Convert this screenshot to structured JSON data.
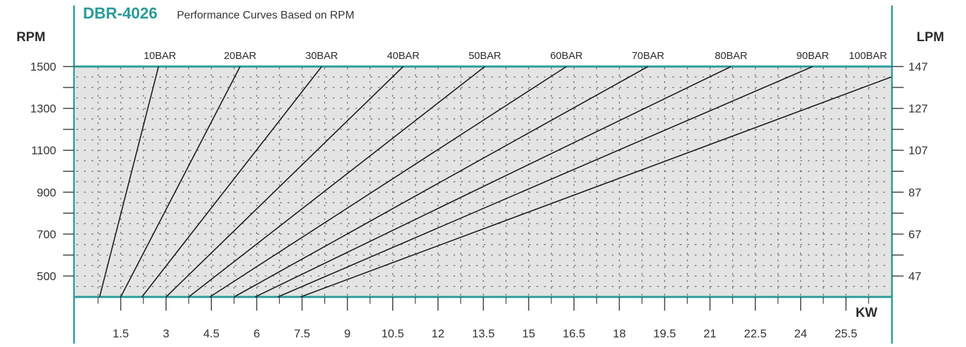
{
  "chart_data": {
    "type": "line",
    "model": "DBR-4026",
    "title": "Performance Curves Based on RPM",
    "ylabel_left": "RPM",
    "ylabel_right": "LPM",
    "xlabel": "KW",
    "ylim": [
      400,
      1500
    ],
    "xlim": [
      0,
      27
    ],
    "grid": true,
    "y_ticks_left": [
      {
        "label": "1500",
        "value": 1500
      },
      {
        "label": "1300",
        "value": 1300
      },
      {
        "label": "1100",
        "value": 1100
      },
      {
        "label": "900",
        "value": 900
      },
      {
        "label": "700",
        "value": 700
      },
      {
        "label": "500",
        "value": 500
      }
    ],
    "y_ticks_right": [
      {
        "label": "147",
        "value": 1500
      },
      {
        "label": "127",
        "value": 1300
      },
      {
        "label": "107",
        "value": 1100
      },
      {
        "label": "87",
        "value": 900
      },
      {
        "label": "67",
        "value": 700
      },
      {
        "label": "47",
        "value": 500
      }
    ],
    "x_ticks": [
      {
        "label": "1.5",
        "value": 1.5
      },
      {
        "label": "3",
        "value": 3
      },
      {
        "label": "4.5",
        "value": 4.5
      },
      {
        "label": "6",
        "value": 6
      },
      {
        "label": "7.5",
        "value": 7.5
      },
      {
        "label": "9",
        "value": 9
      },
      {
        "label": "10.5",
        "value": 10.5
      },
      {
        "label": "12",
        "value": 12
      },
      {
        "label": "13.5",
        "value": 13.5
      },
      {
        "label": "15",
        "value": 15
      },
      {
        "label": "16.5",
        "value": 16.5
      },
      {
        "label": "18",
        "value": 18
      },
      {
        "label": "19.5",
        "value": 19.5
      },
      {
        "label": "21",
        "value": 21
      },
      {
        "label": "22.5",
        "value": 22.5
      },
      {
        "label": "24",
        "value": 24
      },
      {
        "label": "25.5",
        "value": 25.5
      }
    ],
    "series": [
      {
        "name": "10BAR",
        "points": [
          [
            0.8,
            400
          ],
          [
            2.75,
            1500
          ]
        ]
      },
      {
        "name": "20BAR",
        "points": [
          [
            1.5,
            400
          ],
          [
            5.45,
            1500
          ]
        ]
      },
      {
        "name": "30BAR",
        "points": [
          [
            2.2,
            400
          ],
          [
            8.15,
            1500
          ]
        ]
      },
      {
        "name": "40BAR",
        "points": [
          [
            3.0,
            400
          ],
          [
            10.85,
            1500
          ]
        ]
      },
      {
        "name": "50BAR",
        "points": [
          [
            3.75,
            400
          ],
          [
            13.55,
            1500
          ]
        ]
      },
      {
        "name": "60BAR",
        "points": [
          [
            4.45,
            400
          ],
          [
            16.25,
            1500
          ]
        ]
      },
      {
        "name": "70BAR",
        "points": [
          [
            5.25,
            400
          ],
          [
            18.95,
            1500
          ]
        ]
      },
      {
        "name": "80BAR",
        "points": [
          [
            5.95,
            400
          ],
          [
            21.7,
            1500
          ]
        ]
      },
      {
        "name": "90BAR",
        "points": [
          [
            6.7,
            400
          ],
          [
            24.4,
            1500
          ]
        ]
      },
      {
        "name": "100BAR",
        "points": [
          [
            7.45,
            400
          ],
          [
            27.0,
            1450
          ]
        ]
      }
    ],
    "colors": {
      "accent": "#2a9b9b",
      "plot_bg": "#e4e4e4",
      "line": "#1a1a1a",
      "grid_dot": "#555555"
    }
  }
}
